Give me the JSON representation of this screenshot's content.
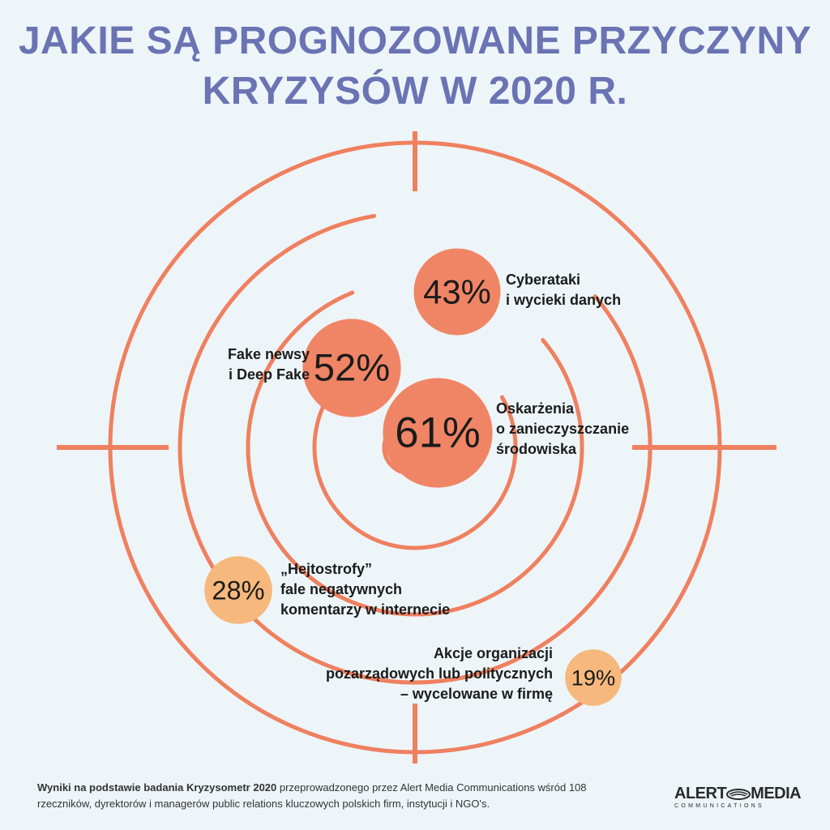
{
  "title": {
    "line1": "JAKIE SĄ PROGNOZOWANE PRZYCZYNY",
    "line2": "KRYZYSÓW W 2020 R."
  },
  "colors": {
    "ring": "#ef8060",
    "bubble_dark": "#f08566",
    "bubble_light": "#f6b87c",
    "title": "#6a73b3",
    "background": "#edf5f8"
  },
  "chart_data": {
    "type": "bubble-target",
    "title": "JAKIE SĄ PROGNOZOWANE PRZYCZYNY KRYZYSÓW W 2020 R.",
    "unit": "%",
    "items": [
      {
        "value": 61,
        "label": "61%",
        "lines": [
          "Oskarżenia",
          "o zanieczyszczanie",
          "środowiska"
        ],
        "tone": "dark"
      },
      {
        "value": 52,
        "label": "52%",
        "lines": [
          "Fake newsy",
          "i Deep Fake"
        ],
        "tone": "dark"
      },
      {
        "value": 43,
        "label": "43%",
        "lines": [
          "Cyberataki",
          "i wycieki danych"
        ],
        "tone": "dark"
      },
      {
        "value": 28,
        "label": "28%",
        "lines": [
          "„Hejtostrofy”",
          "fale negatywnych",
          "komentarzy w internecie"
        ],
        "tone": "light"
      },
      {
        "value": 19,
        "label": "19%",
        "lines": [
          "Akcje organizacji",
          "pozarządowych lub politycznych",
          "– wycelowane w firmę"
        ],
        "tone": "light"
      }
    ]
  },
  "footer": {
    "bold": "Wyniki na podstawie badania Kryzysometr 2020",
    "text": " przeprowadzonego przez Alert Media Communications wśród 108 rzeczników, dyrektorów i managerów public relations kluczowych polskich firm, instytucji i NGO's."
  },
  "logo": {
    "left": "ALERT",
    "right": "MEDIA",
    "sub": "COMMUNICATIONS"
  }
}
